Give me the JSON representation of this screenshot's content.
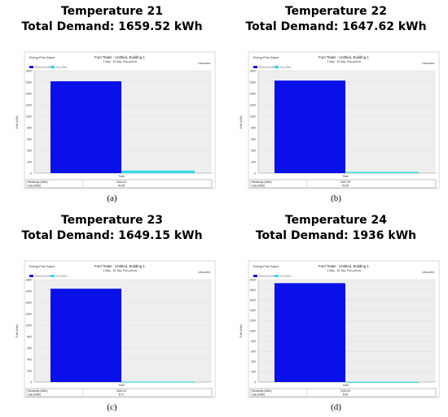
{
  "panels": [
    {
      "title": "Temperature 21",
      "subtitle": "Total Demand: 1659.52 kWh",
      "caption": "(a)"
    },
    {
      "title": "Temperature 22",
      "subtitle": "Total Demand: 1647.62 kWh",
      "caption": "(b)"
    },
    {
      "title": "Temperature 23",
      "subtitle": "Total Demand: 1649.15 kWh",
      "caption": "(c)"
    },
    {
      "title": "Temperature 24",
      "subtitle": "Total Demand: 1936 kWh",
      "caption": "(d)"
    }
  ],
  "colors": {
    "electricity": "#0a10e8",
    "gas": "#33d8e2",
    "plot_bg": "#eeeeee",
    "frame": "#d9d9d9"
  },
  "chart_data": [
    {
      "type": "bar",
      "title": "Fuel Totals - Untitled, Building 1",
      "subtitle": "1 May - 30 Sep, Run period",
      "corner_left": "Energy Plus Output",
      "corner_right": "Unsorted",
      "categories": [
        "Total"
      ],
      "ylabel": "Fuel (kWh)",
      "ylim": [
        0,
        1800
      ],
      "yticks": [
        "0",
        "200",
        "400",
        "600",
        "800",
        "1000",
        "1200",
        "1400",
        "1600",
        "1800"
      ],
      "series": [
        {
          "name": "Electricity (kWh)",
          "values": [
            1614.6
          ]
        },
        {
          "name": "Gas (kWh)",
          "values": [
            44.9
          ]
        }
      ],
      "table_rows": [
        {
          "label": "Electricity (kWh)",
          "value": "1614.61"
        },
        {
          "label": "Gas (kWh)",
          "value": "44.95"
        }
      ]
    },
    {
      "type": "bar",
      "title": "Fuel Totals - Untitled, Building 1",
      "subtitle": "1 May - 30 Sep, Run period",
      "corner_left": "Energy Plus Output",
      "corner_right": "Unsorted",
      "categories": [
        "Total"
      ],
      "ylabel": "Fuel (kWh)",
      "ylim": [
        0,
        1800
      ],
      "yticks": [
        "0",
        "200",
        "400",
        "600",
        "800",
        "1000",
        "1200",
        "1400",
        "1600",
        "1800"
      ],
      "series": [
        {
          "name": "Electricity (kWh)",
          "values": [
            1627.1
          ]
        },
        {
          "name": "Gas (kWh)",
          "values": [
            20.5
          ]
        }
      ],
      "table_rows": [
        {
          "label": "Electricity (kWh)",
          "value": "1627.09"
        },
        {
          "label": "Gas (kWh)",
          "value": "20.53"
        }
      ]
    },
    {
      "type": "bar",
      "title": "Fuel Totals - Untitled, Building 1",
      "subtitle": "1 May - 30 Sep, Run period",
      "corner_left": "Energy Plus Output",
      "corner_right": "Unsorted",
      "categories": [
        "Total"
      ],
      "ylabel": "Fuel (kWh)",
      "ylim": [
        0,
        1800
      ],
      "yticks": [
        "0",
        "200",
        "400",
        "600",
        "800",
        "1000",
        "1200",
        "1400",
        "1600",
        "1800"
      ],
      "series": [
        {
          "name": "Electricity (kWh)",
          "values": [
            1640.4
          ]
        },
        {
          "name": "Gas (kWh)",
          "values": [
            8.7
          ]
        }
      ],
      "table_rows": [
        {
          "label": "Electricity (kWh)",
          "value": "1640.44"
        },
        {
          "label": "Gas (kWh)",
          "value": "8.71"
        }
      ]
    },
    {
      "type": "bar",
      "title": "Fuel Totals - Untitled, Building 1",
      "subtitle": "1 May - 30 Sep, Run period",
      "corner_left": "Energy Plus Output",
      "corner_right": "Unsorted",
      "categories": [
        "Total"
      ],
      "ylabel": "Fuel (kWh)",
      "ylim": [
        0,
        2000
      ],
      "yticks": [
        "0",
        "200",
        "400",
        "600",
        "800",
        "1000",
        "1200",
        "1400",
        "1600",
        "1800",
        "2000"
      ],
      "series": [
        {
          "name": "Electricity (kWh)",
          "values": [
            1931.0
          ]
        },
        {
          "name": "Gas (kWh)",
          "values": [
            5.0
          ]
        }
      ],
      "table_rows": [
        {
          "label": "Electricity (kWh)",
          "value": "1931.00"
        },
        {
          "label": "Gas (kWh)",
          "value": "5.00"
        }
      ]
    }
  ]
}
